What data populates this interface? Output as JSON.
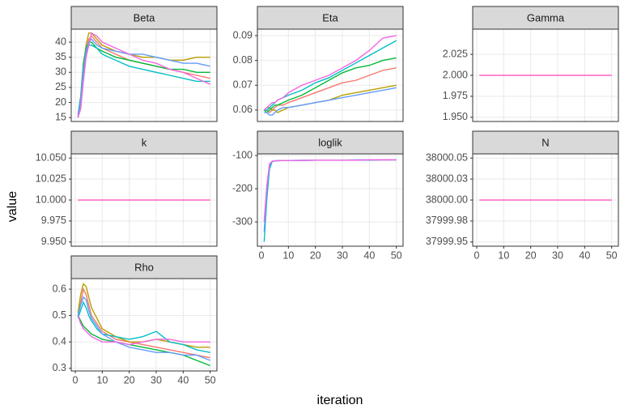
{
  "x_label": "iteration",
  "y_label": "value",
  "chart_data": [
    {
      "type": "line",
      "title": "Beta",
      "x": [
        1,
        2,
        3,
        4,
        5,
        6,
        8,
        10,
        15,
        20,
        25,
        30,
        35,
        40,
        45,
        50
      ],
      "xlim": [
        -1.5,
        52.5
      ],
      "xticks": [
        0,
        10,
        20,
        30,
        40,
        50
      ],
      "ylim": [
        13.7,
        44.3
      ],
      "yticks": [
        15,
        20,
        25,
        30,
        35,
        40
      ],
      "grid": true,
      "series": [
        {
          "color": "#F8766D",
          "values": [
            15,
            18,
            28,
            37,
            41,
            42,
            40,
            38,
            36,
            34,
            33,
            32,
            31,
            30,
            29,
            28
          ]
        },
        {
          "color": "#B79F00",
          "values": [
            15,
            20,
            32,
            39,
            43,
            43,
            41,
            39,
            37,
            36,
            35,
            35,
            34,
            34,
            35,
            35
          ]
        },
        {
          "color": "#00BA38",
          "values": [
            16,
            22,
            33,
            38,
            40,
            40,
            38,
            37,
            35,
            34,
            33,
            32,
            31,
            31,
            30,
            30
          ]
        },
        {
          "color": "#00BFC4",
          "values": [
            15,
            19,
            30,
            36,
            39,
            39,
            38,
            36,
            34,
            32,
            31,
            30,
            29,
            28,
            27,
            27
          ]
        },
        {
          "color": "#619CFF",
          "values": [
            16,
            21,
            31,
            37,
            40,
            41,
            39,
            38,
            37,
            36,
            36,
            35,
            34,
            33,
            33,
            32
          ]
        },
        {
          "color": "#F564E3",
          "values": [
            15,
            18,
            27,
            35,
            39,
            43,
            42,
            40,
            38,
            36,
            34,
            33,
            31,
            30,
            28,
            26
          ]
        }
      ]
    },
    {
      "type": "line",
      "title": "Eta",
      "x": [
        1,
        2,
        3,
        4,
        5,
        6,
        8,
        10,
        15,
        20,
        25,
        30,
        35,
        40,
        45,
        50
      ],
      "xlim": [
        -1.5,
        52.5
      ],
      "xticks": [
        0,
        10,
        20,
        30,
        40,
        50
      ],
      "ylim": [
        0.0554,
        0.0926
      ],
      "yticks": [
        0.06,
        0.07,
        0.08,
        0.09
      ],
      "grid": true,
      "series": [
        {
          "color": "#F8766D",
          "values": [
            0.06,
            0.06,
            0.059,
            0.06,
            0.061,
            0.062,
            0.062,
            0.063,
            0.065,
            0.067,
            0.069,
            0.071,
            0.072,
            0.074,
            0.076,
            0.077
          ]
        },
        {
          "color": "#B79F00",
          "values": [
            0.06,
            0.061,
            0.061,
            0.06,
            0.06,
            0.059,
            0.06,
            0.061,
            0.062,
            0.063,
            0.064,
            0.066,
            0.067,
            0.068,
            0.069,
            0.07
          ]
        },
        {
          "color": "#00BA38",
          "values": [
            0.06,
            0.059,
            0.06,
            0.061,
            0.062,
            0.062,
            0.063,
            0.064,
            0.066,
            0.069,
            0.072,
            0.075,
            0.077,
            0.078,
            0.08,
            0.081
          ]
        },
        {
          "color": "#00BFC4",
          "values": [
            0.06,
            0.06,
            0.061,
            0.062,
            0.063,
            0.064,
            0.065,
            0.066,
            0.068,
            0.071,
            0.073,
            0.076,
            0.079,
            0.082,
            0.085,
            0.088
          ]
        },
        {
          "color": "#619CFF",
          "values": [
            0.059,
            0.059,
            0.058,
            0.058,
            0.059,
            0.06,
            0.061,
            0.061,
            0.062,
            0.063,
            0.064,
            0.065,
            0.066,
            0.067,
            0.068,
            0.069
          ]
        },
        {
          "color": "#F564E3",
          "values": [
            0.06,
            0.061,
            0.062,
            0.063,
            0.063,
            0.064,
            0.065,
            0.067,
            0.07,
            0.072,
            0.074,
            0.077,
            0.08,
            0.084,
            0.089,
            0.09
          ]
        }
      ]
    },
    {
      "type": "line",
      "title": "Gamma",
      "x": [
        1,
        50
      ],
      "xlim": [
        -1.5,
        52.5
      ],
      "xticks": [
        0,
        10,
        20,
        30,
        40,
        50
      ],
      "ylim": [
        1.945,
        2.055
      ],
      "yticks": [
        {
          "value": 1.95,
          "label": "1.950"
        },
        1.975,
        {
          "value": 2,
          "label": "2.000"
        },
        2.025
      ],
      "grid": true,
      "series": [
        {
          "color": "#FF61C3",
          "values": [
            2,
            2
          ]
        }
      ]
    },
    {
      "type": "line",
      "title": "k",
      "x": [
        1,
        50
      ],
      "xlim": [
        -1.5,
        52.5
      ],
      "xticks": [
        0,
        10,
        20,
        30,
        40,
        50
      ],
      "ylim": [
        9.945,
        10.055
      ],
      "yticks": [
        {
          "value": 9.95,
          "label": "9.950"
        },
        9.975,
        {
          "value": 10,
          "label": "10.000"
        },
        10.025,
        {
          "value": 10.05,
          "label": "10.050"
        }
      ],
      "grid": true,
      "series": [
        {
          "color": "#FF61C3",
          "values": [
            10,
            10
          ]
        }
      ]
    },
    {
      "type": "line",
      "title": "loglik",
      "x": [
        1,
        2,
        3,
        4,
        5,
        6,
        8,
        10,
        15,
        20,
        25,
        30,
        35,
        40,
        45,
        50
      ],
      "xlim": [
        -1.5,
        52.5
      ],
      "xticks": [
        0,
        10,
        20,
        30,
        40,
        50
      ],
      "ylim": [
        -373,
        -95
      ],
      "yticks": [
        -300,
        -200,
        -100
      ],
      "grid": true,
      "series": [
        {
          "color": "#00BFC4",
          "values": [
            -360,
            -230,
            -140,
            -118,
            -116,
            -116,
            -115,
            -115,
            -115,
            -114,
            -114,
            -114,
            -114,
            -114,
            -113,
            -113
          ]
        },
        {
          "color": "#619CFF",
          "values": [
            -330,
            -200,
            -130,
            -117,
            -116,
            -115,
            -115,
            -115,
            -114,
            -114,
            -114,
            -114,
            -113,
            -113,
            -113,
            -113
          ]
        },
        {
          "color": "#F564E3",
          "values": [
            -300,
            -190,
            -125,
            -117,
            -116,
            -116,
            -115,
            -115,
            -115,
            -114,
            -114,
            -114,
            -114,
            -113,
            -113,
            -113
          ]
        }
      ]
    },
    {
      "type": "line",
      "title": "N",
      "x": [
        1,
        50
      ],
      "xlim": [
        -1.5,
        52.5
      ],
      "xticks": [
        0,
        10,
        20,
        30,
        40,
        50
      ],
      "ylim": [
        37999.945,
        38000.055
      ],
      "yticks": [
        37999.95,
        {
          "value": 37999.975,
          "label": "37999.98"
        },
        {
          "value": 38000,
          "label": "38000.00"
        },
        {
          "value": 38000.025,
          "label": "38000.03"
        },
        38000.05
      ],
      "grid": true,
      "series": [
        {
          "color": "#FF61C3",
          "values": [
            38000,
            38000
          ]
        }
      ]
    },
    {
      "type": "line",
      "title": "Rho",
      "x": [
        1,
        2,
        3,
        4,
        5,
        6,
        8,
        10,
        15,
        20,
        25,
        30,
        35,
        40,
        45,
        50
      ],
      "xlim": [
        -1.5,
        52.5
      ],
      "xticks": [
        0,
        10,
        20,
        30,
        40,
        50
      ],
      "ylim": [
        0.29,
        0.64
      ],
      "yticks": [
        0.3,
        0.4,
        0.5,
        0.6
      ],
      "grid": true,
      "series": [
        {
          "color": "#F8766D",
          "values": [
            0.5,
            0.55,
            0.6,
            0.58,
            0.54,
            0.5,
            0.47,
            0.44,
            0.41,
            0.4,
            0.39,
            0.38,
            0.37,
            0.36,
            0.35,
            0.34
          ]
        },
        {
          "color": "#B79F00",
          "values": [
            0.51,
            0.58,
            0.62,
            0.61,
            0.57,
            0.53,
            0.49,
            0.45,
            0.42,
            0.4,
            0.4,
            0.41,
            0.4,
            0.39,
            0.38,
            0.38
          ]
        },
        {
          "color": "#00BA38",
          "values": [
            0.5,
            0.48,
            0.46,
            0.45,
            0.44,
            0.43,
            0.42,
            0.41,
            0.4,
            0.39,
            0.38,
            0.37,
            0.36,
            0.35,
            0.33,
            0.31
          ]
        },
        {
          "color": "#00BFC4",
          "values": [
            0.49,
            0.52,
            0.55,
            0.53,
            0.5,
            0.48,
            0.45,
            0.43,
            0.42,
            0.41,
            0.42,
            0.44,
            0.4,
            0.39,
            0.37,
            0.36
          ]
        },
        {
          "color": "#619CFF",
          "values": [
            0.5,
            0.54,
            0.57,
            0.56,
            0.52,
            0.49,
            0.46,
            0.43,
            0.4,
            0.38,
            0.37,
            0.36,
            0.36,
            0.35,
            0.35,
            0.33
          ]
        },
        {
          "color": "#F564E3",
          "values": [
            0.5,
            0.47,
            0.45,
            0.44,
            0.43,
            0.42,
            0.41,
            0.4,
            0.4,
            0.39,
            0.4,
            0.41,
            0.41,
            0.4,
            0.4,
            0.4
          ]
        }
      ]
    }
  ]
}
